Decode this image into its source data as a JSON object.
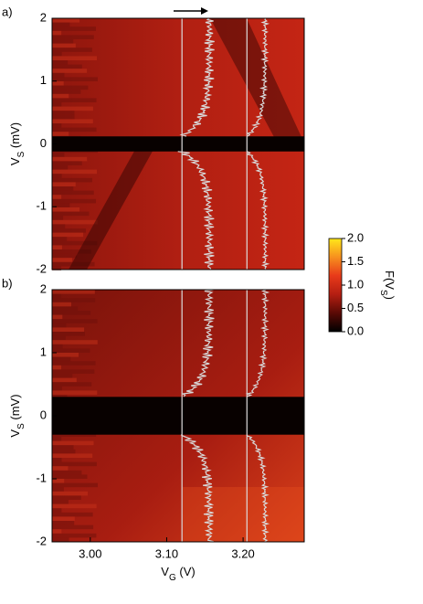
{
  "chart_data": [
    {
      "type": "heatmap",
      "label": "a)",
      "ylabel": [
        "V",
        "S",
        " (mV)"
      ],
      "xlim": [
        2.95,
        3.28
      ],
      "ylim": [
        -2,
        2
      ],
      "yticks": [
        -2,
        -1,
        0,
        1,
        2
      ],
      "colorbar": {
        "label": [
          "F(V",
          "S",
          ")"
        ],
        "lim": [
          0,
          2
        ],
        "ticks": [
          {
            "value": 0,
            "label": "0.0"
          },
          {
            "value": 0.5,
            "label": "0.5"
          },
          {
            "value": 1,
            "label": "1.0"
          },
          {
            "value": 1.5,
            "label": "1.5"
          },
          {
            "value": 2,
            "label": "2.0"
          }
        ],
        "colors": [
          "#000000",
          "#5a0a05",
          "#b41e12",
          "#e83a1a",
          "#f7901e",
          "#ffe81a"
        ]
      }
    },
    {
      "type": "heatmap",
      "label": "b)",
      "ylabel": [
        "V",
        "S",
        " (mV)"
      ],
      "xlabel": [
        "V",
        "G",
        " (V)"
      ],
      "xlim": [
        2.95,
        3.28
      ],
      "ylim": [
        -2,
        2
      ],
      "yticks": [
        -2,
        -1,
        0,
        1,
        2
      ],
      "xticks": [
        {
          "value": 3,
          "label": "3.00"
        },
        {
          "value": 3.1,
          "label": "3.10"
        },
        {
          "value": 3.2,
          "label": "3.20"
        }
      ]
    }
  ]
}
